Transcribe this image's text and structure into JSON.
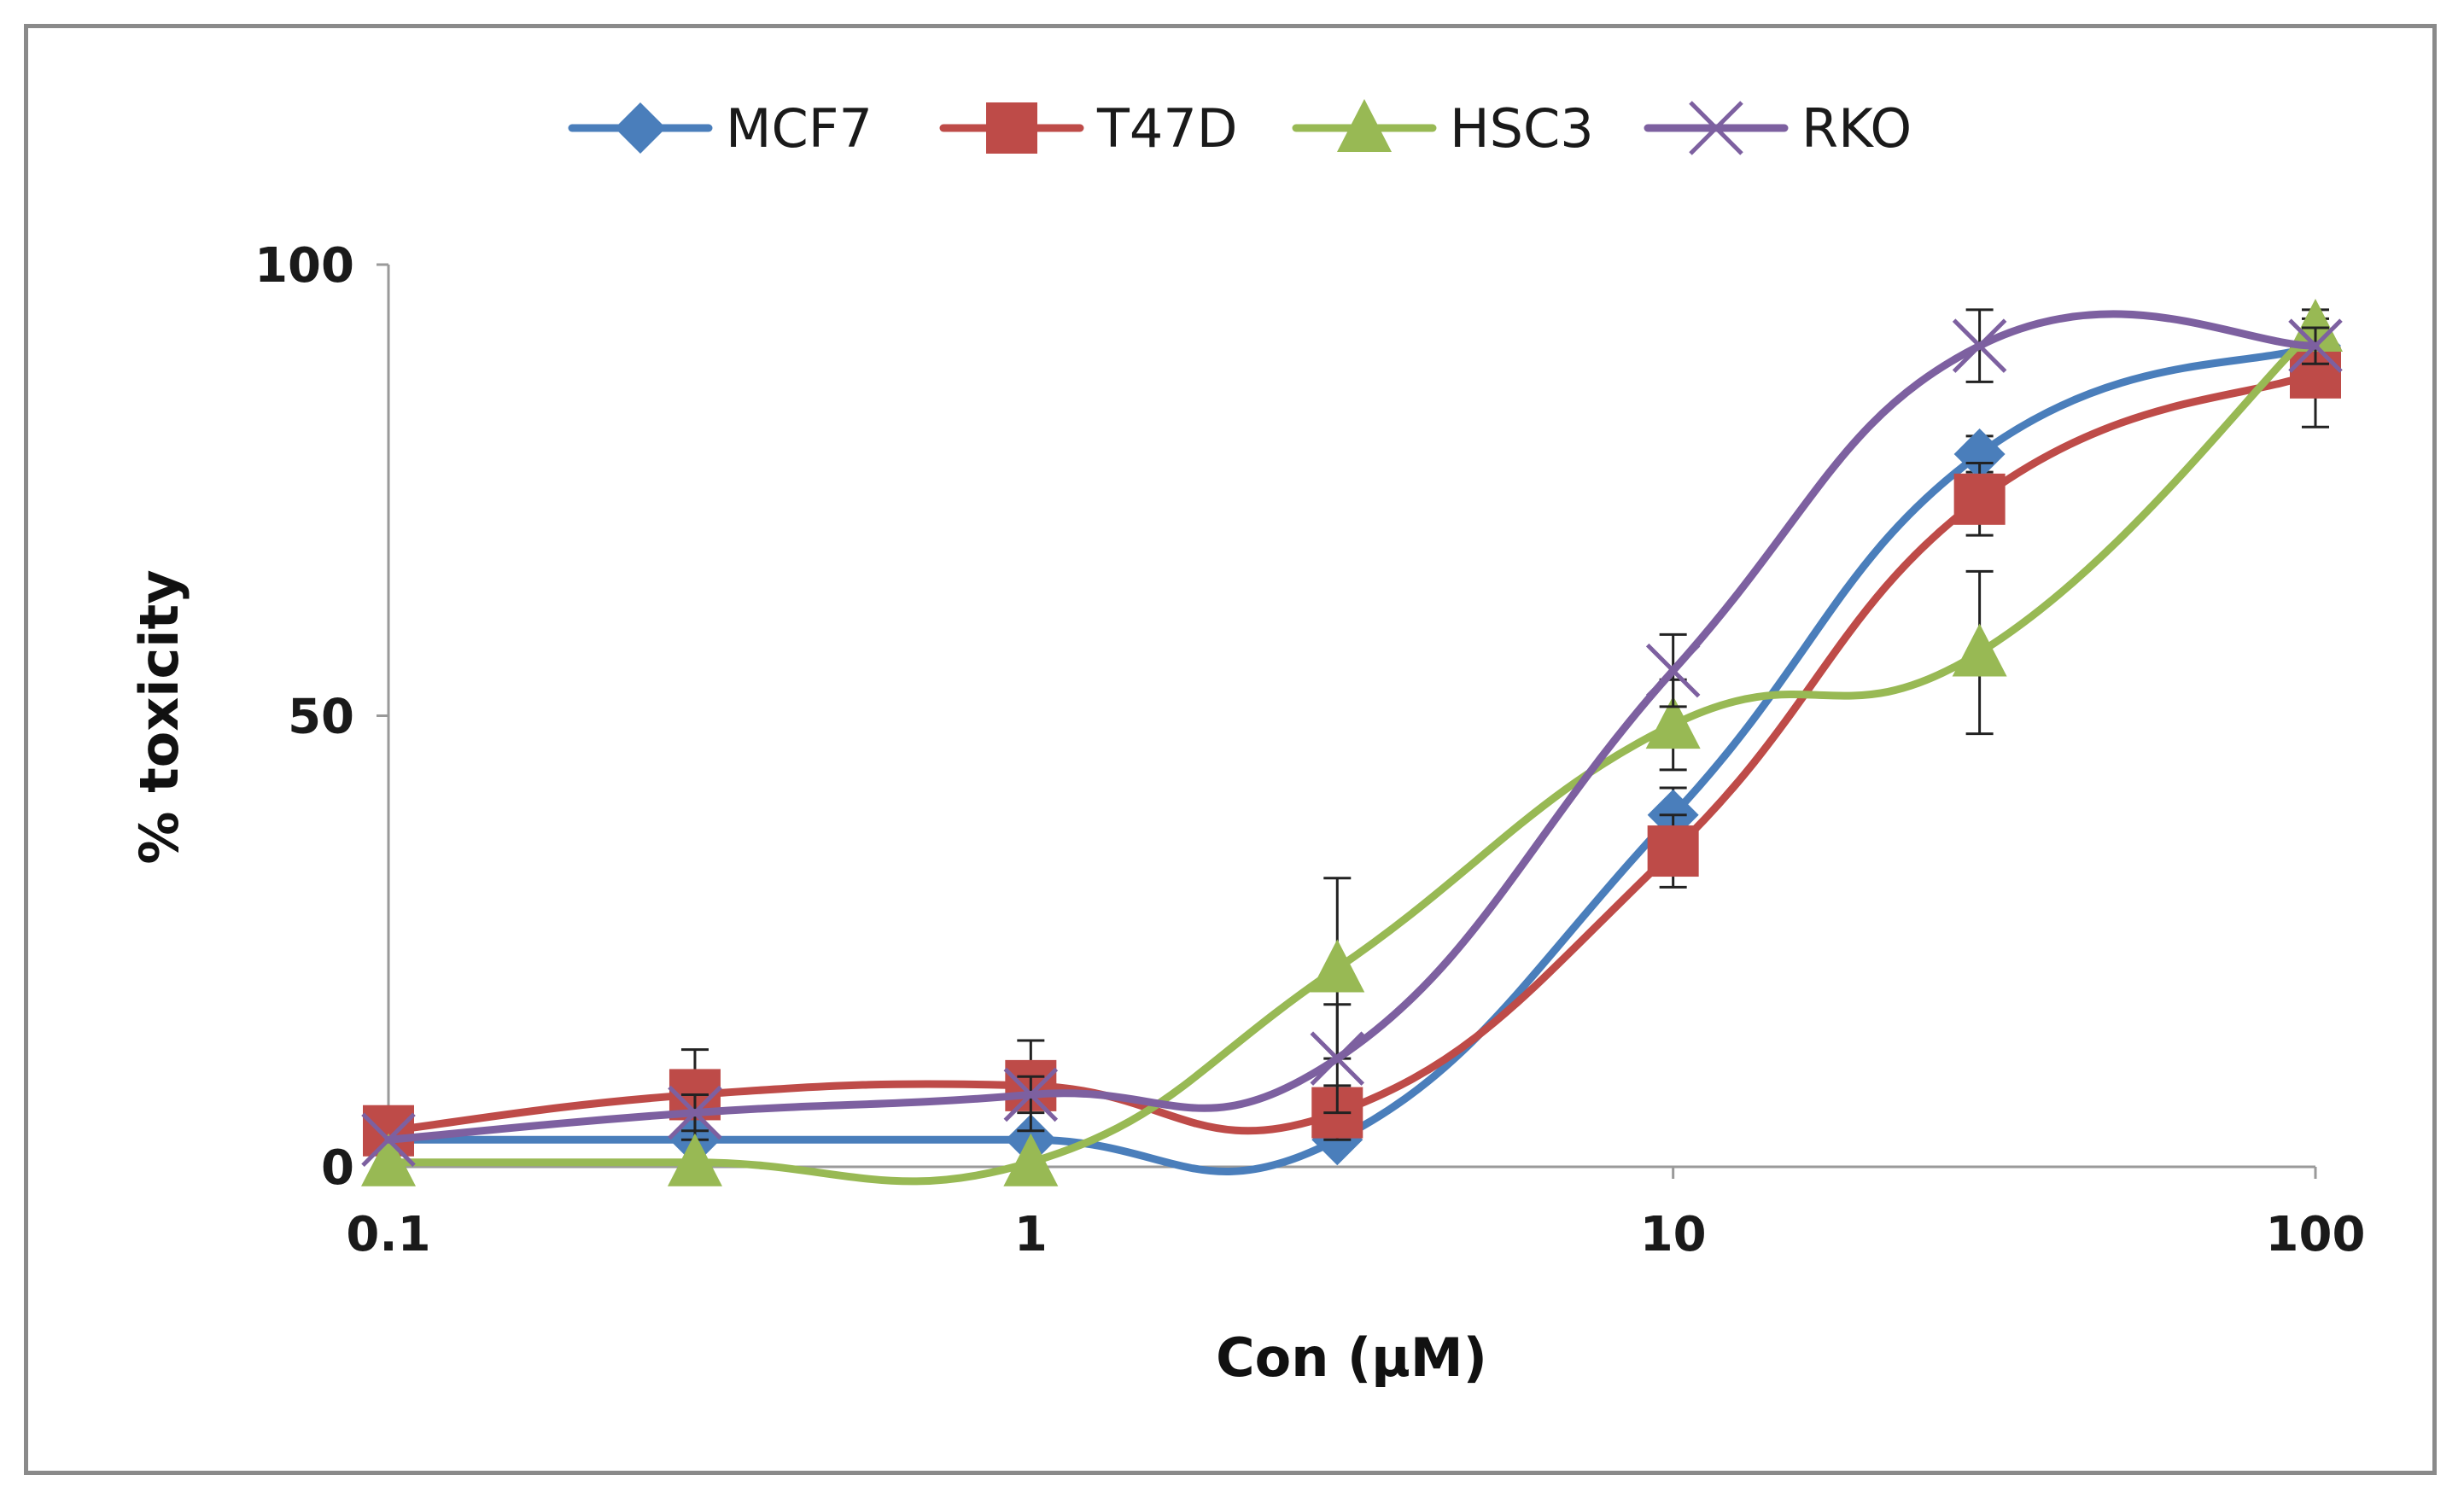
{
  "chart_data": {
    "type": "line",
    "title": "",
    "xlabel": "Con (μM)",
    "ylabel": "% toxicity",
    "xscale": "log",
    "xlim": [
      0.1,
      100
    ],
    "ylim": [
      0,
      100
    ],
    "xticks": [
      0.1,
      1,
      10,
      100
    ],
    "xtick_labels": [
      "0.1",
      "1",
      "10",
      "100"
    ],
    "yticks": [
      0,
      50,
      100
    ],
    "ytick_labels": [
      "0",
      "50",
      "100"
    ],
    "grid": false,
    "legend_position": "top-center",
    "smooth": true,
    "x": [
      0.1,
      0.3,
      1,
      3,
      10,
      30,
      100
    ],
    "series": [
      {
        "name": "MCF7",
        "color": "#4a7ebb",
        "marker": "diamond",
        "values": [
          3,
          3,
          3,
          3,
          39,
          79,
          91
        ],
        "errors": [
          1,
          1,
          1,
          1,
          3,
          2,
          2
        ]
      },
      {
        "name": "T47D",
        "color": "#be4b48",
        "marker": "square",
        "values": [
          4,
          8,
          9,
          6,
          35,
          74,
          88
        ],
        "errors": [
          1,
          5,
          5,
          3,
          4,
          4,
          6
        ]
      },
      {
        "name": "HSC3",
        "color": "#98b954",
        "marker": "triangle",
        "values": [
          0.5,
          0.5,
          0.5,
          22,
          49,
          57,
          93
        ],
        "errors": [
          0.5,
          0.5,
          0.5,
          10,
          5,
          9,
          2
        ]
      },
      {
        "name": "RKO",
        "color": "#7d60a0",
        "marker": "x",
        "values": [
          3,
          6,
          8,
          12,
          55,
          91,
          91
        ],
        "errors": [
          1,
          2,
          2,
          6,
          4,
          4,
          2
        ]
      }
    ]
  }
}
